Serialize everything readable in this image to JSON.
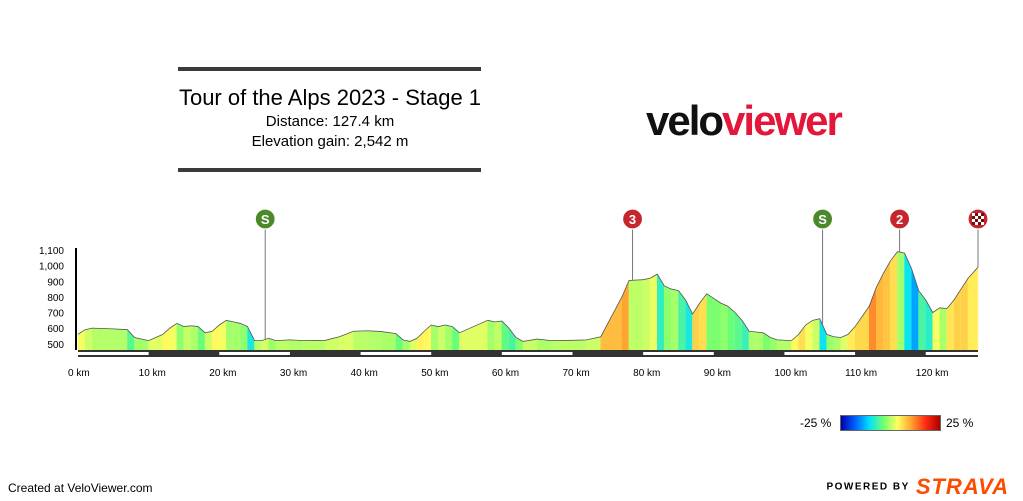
{
  "header": {
    "title": "Tour of the Alps 2023 - Stage 1",
    "distance": "Distance: 127.4 km",
    "elevation": "Elevation gain: 2,542 m"
  },
  "logo": {
    "part1": "velo",
    "part2": "viewer",
    "color1": "#111111",
    "color2": "#e4173b"
  },
  "chart_data": {
    "type": "area",
    "title": "",
    "xlabel": "",
    "ylabel": "",
    "xlim": [
      0,
      127.4
    ],
    "ylim": [
      460,
      1100
    ],
    "x_ticks": [
      0,
      10,
      20,
      30,
      40,
      50,
      60,
      70,
      80,
      90,
      100,
      110,
      120
    ],
    "x_tick_labels": [
      "0 km",
      "10 km",
      "20 km",
      "30 km",
      "40 km",
      "50 km",
      "60 km",
      "70 km",
      "80 km",
      "90 km",
      "100 km",
      "110 km",
      "120 km"
    ],
    "y_ticks": [
      500,
      600,
      700,
      800,
      900,
      1000,
      1100
    ],
    "y_tick_labels": [
      "500",
      "600",
      "700",
      "800",
      "900",
      "1,000",
      "1,100"
    ],
    "profile": [
      [
        0,
        560
      ],
      [
        1,
        590
      ],
      [
        2,
        600
      ],
      [
        5,
        595
      ],
      [
        7,
        590
      ],
      [
        8,
        540
      ],
      [
        10,
        520
      ],
      [
        11,
        540
      ],
      [
        12,
        560
      ],
      [
        13,
        600
      ],
      [
        14,
        630
      ],
      [
        15,
        610
      ],
      [
        16,
        615
      ],
      [
        17,
        610
      ],
      [
        18,
        570
      ],
      [
        19,
        580
      ],
      [
        20,
        620
      ],
      [
        21,
        650
      ],
      [
        22,
        640
      ],
      [
        23,
        630
      ],
      [
        24,
        610
      ],
      [
        25,
        520
      ],
      [
        26,
        520
      ],
      [
        27,
        535
      ],
      [
        28,
        520
      ],
      [
        30,
        525
      ],
      [
        32,
        520
      ],
      [
        35,
        522
      ],
      [
        37,
        545
      ],
      [
        39,
        580
      ],
      [
        41,
        583
      ],
      [
        43,
        578
      ],
      [
        45,
        565
      ],
      [
        46,
        525
      ],
      [
        47,
        515
      ],
      [
        48,
        535
      ],
      [
        49,
        580
      ],
      [
        50,
        620
      ],
      [
        51,
        610
      ],
      [
        52,
        620
      ],
      [
        53,
        610
      ],
      [
        54,
        570
      ],
      [
        55,
        590
      ],
      [
        58,
        650
      ],
      [
        59,
        640
      ],
      [
        60,
        645
      ],
      [
        61,
        600
      ],
      [
        62,
        540
      ],
      [
        63,
        515
      ],
      [
        65,
        530
      ],
      [
        67,
        520
      ],
      [
        70,
        522
      ],
      [
        72,
        525
      ],
      [
        74,
        545
      ],
      [
        77,
        800
      ],
      [
        78,
        905
      ],
      [
        80,
        910
      ],
      [
        81,
        920
      ],
      [
        82,
        945
      ],
      [
        83,
        870
      ],
      [
        84,
        850
      ],
      [
        85,
        840
      ],
      [
        86,
        780
      ],
      [
        87,
        690
      ],
      [
        88,
        760
      ],
      [
        89,
        820
      ],
      [
        90,
        790
      ],
      [
        91,
        760
      ],
      [
        92,
        740
      ],
      [
        93,
        700
      ],
      [
        94,
        650
      ],
      [
        95,
        580
      ],
      [
        96,
        575
      ],
      [
        97,
        570
      ],
      [
        98,
        540
      ],
      [
        99,
        525
      ],
      [
        101,
        520
      ],
      [
        102,
        560
      ],
      [
        103,
        620
      ],
      [
        104,
        650
      ],
      [
        105,
        660
      ],
      [
        106,
        560
      ],
      [
        107,
        545
      ],
      [
        108,
        540
      ],
      [
        109,
        560
      ],
      [
        110,
        610
      ],
      [
        112,
        740
      ],
      [
        113,
        860
      ],
      [
        114,
        950
      ],
      [
        115,
        1030
      ],
      [
        116,
        1090
      ],
      [
        117,
        1080
      ],
      [
        118,
        980
      ],
      [
        119,
        840
      ],
      [
        120,
        780
      ],
      [
        121,
        700
      ],
      [
        122,
        730
      ],
      [
        123,
        725
      ],
      [
        124,
        780
      ],
      [
        125,
        850
      ],
      [
        126,
        920
      ],
      [
        127.4,
        990
      ]
    ],
    "gradient_color_stops": [
      "#0000aa",
      "#0060ff",
      "#00e0ff",
      "#70ff70",
      "#ffff60",
      "#ffa030",
      "#ff2a10",
      "#aa0000"
    ],
    "markers": [
      {
        "type": "sprint",
        "label": "S",
        "km": 26.5,
        "color": "#4a8a2a"
      },
      {
        "type": "climb",
        "label": "3",
        "km": 78.5,
        "color": "#c7252d"
      },
      {
        "type": "sprint",
        "label": "S",
        "km": 105.4,
        "color": "#4a8a2a"
      },
      {
        "type": "climb",
        "label": "2",
        "km": 116.3,
        "color": "#c7252d"
      },
      {
        "type": "finish",
        "label": "finish",
        "km": 127.4,
        "color": "#c7252d"
      }
    ]
  },
  "legend": {
    "min_label": "-25 %",
    "max_label": "25 %"
  },
  "footer": {
    "created": "Created at VeloViewer.com"
  },
  "powered": {
    "text": "POWERED BY",
    "brand": "STRAVA",
    "brand_color": "#fc4c02"
  }
}
